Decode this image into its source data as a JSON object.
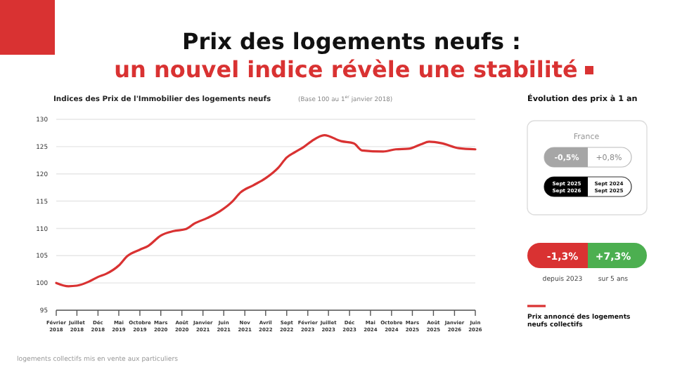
{
  "chart_data": [
    {
      "type": "line",
      "title": "Prix des logements neufs :",
      "subtitle": "un nouvel indice révèle une stabilité",
      "ylabel": "Indices des Prix de l'Immobilier des logements neufs",
      "annotations": [
        "(Base 100 au 1$^{er}$ janvier 2018)",
        "logements collectifs mis en vente aux particuliers"
      ],
      "x": [
        "2018-02",
        "2018-05",
        "2018-07",
        "2018-10",
        "2018-12",
        "2019-02",
        "2019-05",
        "2019-07",
        "2019-10",
        "2019-12",
        "2020-03",
        "2020-06",
        "2020-09",
        "2020-11",
        "2021-02",
        "2021-05",
        "2021-08",
        "2021-10",
        "2022-01",
        "2022-04",
        "2022-07",
        "2022-09",
        "2022-11",
        "2023-01",
        "2023-03",
        "2023-06",
        "2023-10",
        "2024-01",
        "2024-03",
        "2024-08",
        "2024-11",
        "2025-02",
        "2025-05",
        "2025-07",
        "2025-10",
        "2026-02",
        "2026-06"
      ],
      "series": [
        {
          "name": "Prix annoncé des logements neufs collectifs",
          "color": "#d93232",
          "values": [
            100.0,
            99.4,
            99.5,
            100.3,
            101.1,
            101.7,
            103.2,
            104.9,
            106.1,
            106.8,
            108.7,
            109.5,
            109.9,
            110.9,
            111.9,
            113.1,
            114.9,
            116.6,
            117.9,
            119.2,
            121.1,
            123.0,
            124.0,
            124.9,
            126.0,
            127.1,
            126.0,
            125.6,
            124.3,
            124.1,
            124.5,
            124.6,
            125.4,
            125.9,
            125.6,
            124.7,
            124.5
          ]
        }
      ],
      "xlim": [
        "2018-02",
        "2026-06"
      ],
      "xticks": [
        {
          "value": "2018-02",
          "label": "Février 2018"
        },
        {
          "value": "2018-07",
          "label": "Juillet 2018"
        },
        {
          "value": "2018-12",
          "label": "Déc 2018"
        },
        {
          "value": "2019-05",
          "label": "Mai 2019"
        },
        {
          "value": "2019-10",
          "label": "Octobre 2019"
        },
        {
          "value": "2020-03",
          "label": "Mars 2020"
        },
        {
          "value": "2020-08",
          "label": "Août 2020"
        },
        {
          "value": "2021-01",
          "label": "Janvier 2021"
        },
        {
          "value": "2021-06",
          "label": "Juin 2021"
        },
        {
          "value": "2021-11",
          "label": "Nov 2021"
        },
        {
          "value": "2022-04",
          "label": "Avril 2022"
        },
        {
          "value": "2022-09",
          "label": "Sept 2022"
        },
        {
          "value": "2023-02",
          "label": "Février 2023"
        },
        {
          "value": "2023-07",
          "label": "Juillet 2023"
        },
        {
          "value": "2023-12",
          "label": "Déc 2023"
        },
        {
          "value": "2024-05",
          "label": "Mai 2024"
        },
        {
          "value": "2024-10",
          "label": "Octobre 2024"
        },
        {
          "value": "2025-03",
          "label": "Mars 2025"
        },
        {
          "value": "2025-08",
          "label": "Août 2025"
        },
        {
          "value": "2026-01",
          "label": "Janvier 2026"
        },
        {
          "value": "2026-06",
          "label": "Juin 2026"
        }
      ],
      "ylim": [
        95,
        130
      ],
      "yticks": [
        95,
        100,
        105,
        110,
        115,
        120,
        125,
        130
      ],
      "grid": "y",
      "legend": "right",
      "marker": "none",
      "line_style": "solid"
    },
    {
      "type": "other",
      "title": "Évolution des prix à 1 an",
      "annotations": [
        "France",
        "-0,5%",
        "+0,8%",
        "Sept 2025",
        "Sept 2026",
        "Sept 2024",
        "Sept 2025",
        "-1,3%",
        "+7,3%",
        "depuis 2023",
        "sur 5 ans"
      ]
    }
  ]
}
